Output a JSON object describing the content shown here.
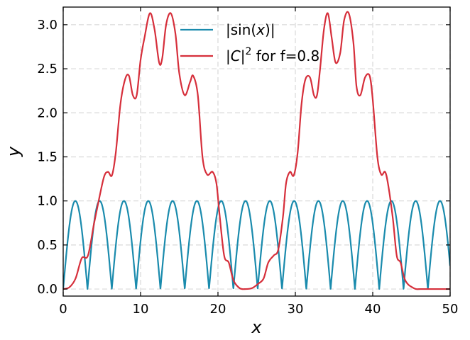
{
  "chart_data": {
    "type": "line",
    "title": "",
    "xlabel": "x",
    "ylabel": "y",
    "xlim": [
      0,
      50
    ],
    "ylim": [
      -0.08,
      3.2
    ],
    "xticks": [
      0,
      10,
      20,
      30,
      40,
      50
    ],
    "xtick_labels": [
      "0",
      "10",
      "20",
      "30",
      "40",
      "50"
    ],
    "yticks": [
      0,
      0.5,
      1.0,
      1.5,
      2.0,
      2.5,
      3.0
    ],
    "ytick_labels": [
      "0.0",
      "0.5",
      "1.0",
      "1.5",
      "2.0",
      "2.5",
      "3.0"
    ],
    "grid": true,
    "legend_placement": "top-center",
    "series": [
      {
        "name": "|sin(x)|",
        "legend_parts": {
          "pre": "|sin(",
          "var": "x",
          "post": ")|"
        },
        "color": "#1a8bad",
        "function": "abs(sin(x))",
        "x_range": [
          0,
          50
        ]
      },
      {
        "name": "|C|^2 for f=0.8",
        "legend_parts": {
          "pre": "|",
          "var": "C",
          "mid": "|",
          "sup": "2",
          "post": " for f=0.8"
        },
        "color": "#d62f3b",
        "x": [
          0,
          0.8,
          1.6,
          2.4,
          3.2,
          4.0,
          4.7,
          5.3,
          5.8,
          6.3,
          6.8,
          7.4,
          8.0,
          8.5,
          9.0,
          9.5,
          10.0,
          10.5,
          11.2,
          11.8,
          12.4,
          12.8,
          13.3,
          13.9,
          14.5,
          15.0,
          15.7,
          16.4,
          16.8,
          17.4,
          18.0,
          18.6,
          19.3,
          19.8,
          20.2,
          20.8,
          21.4,
          22.0,
          22.8,
          23.6,
          24.4,
          25.2,
          25.9,
          26.5,
          27.2,
          27.8,
          28.4,
          28.8,
          29.3,
          29.8,
          30.3,
          30.8,
          31.3,
          31.9,
          32.4,
          32.8,
          33.2,
          33.7,
          34.2,
          34.7,
          35.2,
          35.8,
          36.3,
          36.9,
          37.5,
          37.9,
          38.4,
          39.0,
          39.6,
          40.0,
          40.6,
          41.1,
          41.6,
          42.0,
          42.6,
          43.1,
          43.6,
          44.1,
          44.6,
          45.1,
          45.6,
          46.2,
          46.8,
          47.6,
          48.4,
          49.2,
          50.0
        ],
        "y": [
          0.0,
          0.02,
          0.12,
          0.35,
          0.38,
          0.75,
          1.05,
          1.28,
          1.33,
          1.29,
          1.55,
          2.1,
          2.38,
          2.42,
          2.2,
          2.2,
          2.6,
          2.85,
          3.13,
          2.95,
          2.57,
          2.62,
          3.0,
          3.13,
          2.9,
          2.45,
          2.2,
          2.35,
          2.42,
          2.2,
          1.5,
          1.3,
          1.33,
          1.2,
          0.85,
          0.38,
          0.3,
          0.1,
          0.01,
          0.0,
          0.01,
          0.06,
          0.12,
          0.3,
          0.38,
          0.45,
          0.82,
          1.2,
          1.33,
          1.29,
          1.55,
          2.1,
          2.38,
          2.4,
          2.2,
          2.2,
          2.5,
          2.95,
          3.13,
          2.85,
          2.57,
          2.68,
          3.05,
          3.13,
          2.8,
          2.3,
          2.2,
          2.4,
          2.42,
          2.15,
          1.5,
          1.3,
          1.33,
          1.18,
          0.8,
          0.38,
          0.3,
          0.12,
          0.05,
          0.02,
          0.0,
          0.0,
          0.0,
          0.0,
          0.0,
          0.0,
          0.0
        ]
      }
    ]
  }
}
